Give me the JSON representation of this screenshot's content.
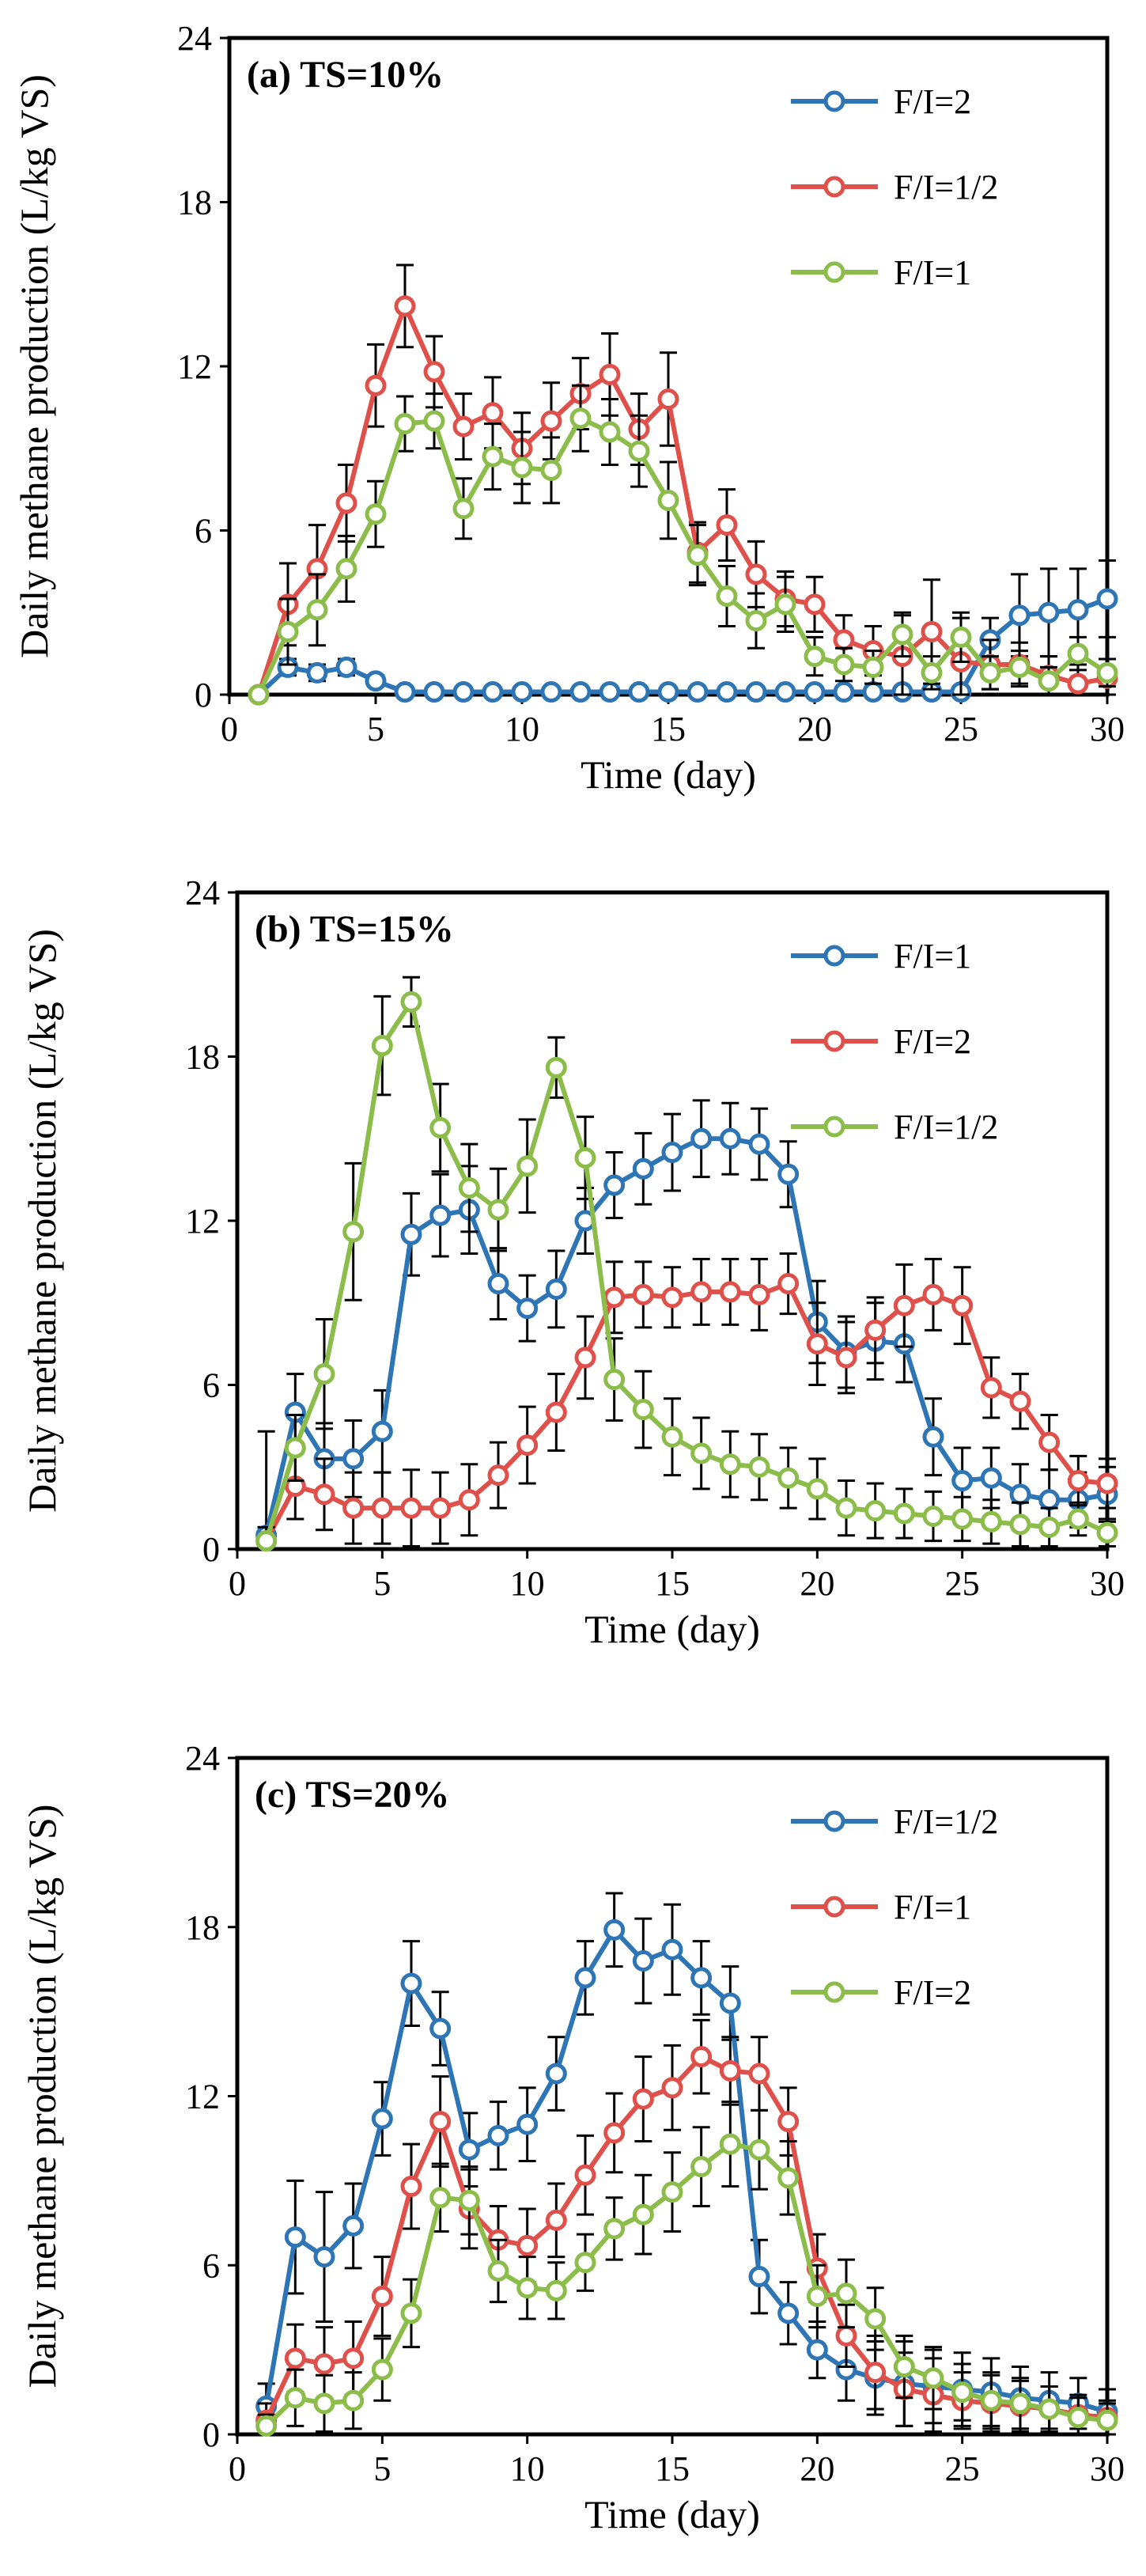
{
  "figure": {
    "colors": {
      "blue": "#2e75b6",
      "red": "#e0504a",
      "green": "#8cbd4a",
      "axis": "#000000",
      "errorbar": "#000000"
    }
  },
  "chart_data": [
    {
      "type": "line",
      "title": "(a) TS=10%",
      "xlabel": "Time (day)",
      "ylabel": "Daily methane production (L/kg VS)",
      "xlim": [
        0,
        30
      ],
      "ylim": [
        0,
        24
      ],
      "xticks": [
        0,
        5,
        10,
        15,
        20,
        25,
        30
      ],
      "yticks": [
        0,
        6,
        12,
        18,
        24
      ],
      "legend_position": "top-right",
      "x": [
        1,
        2,
        3,
        4,
        5,
        6,
        7,
        8,
        9,
        10,
        11,
        12,
        13,
        14,
        15,
        16,
        17,
        18,
        19,
        20,
        21,
        22,
        23,
        24,
        25,
        26,
        27,
        28,
        29,
        30
      ],
      "series": [
        {
          "name": "F/I=2",
          "color": "#2e75b6",
          "values": [
            0,
            1.0,
            0.8,
            1.0,
            0.5,
            0.1,
            0.1,
            0.1,
            0.1,
            0.1,
            0.1,
            0.1,
            0.1,
            0.1,
            0.1,
            0.1,
            0.1,
            0.1,
            0.1,
            0.1,
            0.1,
            0.1,
            0.1,
            0.1,
            0.1,
            2.0,
            2.9,
            3.0,
            3.1,
            3.5
          ],
          "errors": [
            0,
            0.3,
            0.3,
            0.3,
            0.2,
            0,
            0,
            0,
            0,
            0,
            0,
            0,
            0,
            0,
            0,
            0,
            0,
            0,
            0,
            0,
            0,
            0,
            0,
            0,
            0,
            0.8,
            1.5,
            1.6,
            1.5,
            1.4
          ]
        },
        {
          "name": "F/I=1/2",
          "color": "#e0504a",
          "values": [
            0,
            3.3,
            4.6,
            7.0,
            11.3,
            14.2,
            11.8,
            9.8,
            10.3,
            9.0,
            10.0,
            11.0,
            11.7,
            9.7,
            10.8,
            5.2,
            6.2,
            4.4,
            3.5,
            3.3,
            2.0,
            1.6,
            1.4,
            2.3,
            1.2,
            1.1,
            1.1,
            0.7,
            0.4,
            0.6
          ],
          "errors": [
            0,
            1.5,
            1.6,
            1.4,
            1.5,
            1.5,
            1.3,
            1.2,
            1.3,
            1.3,
            1.4,
            1.3,
            1.5,
            1.3,
            1.7,
            1.1,
            1.3,
            1.2,
            1.0,
            1.0,
            0.9,
            0.9,
            1.5,
            1.9,
            1.6,
            0.9,
            0.8,
            0.7,
            0.7,
            0.7
          ]
        },
        {
          "name": "F/I=1",
          "color": "#8cbd4a",
          "values": [
            0,
            2.3,
            3.1,
            4.6,
            6.6,
            9.9,
            10.0,
            6.8,
            8.7,
            8.3,
            8.2,
            10.1,
            9.6,
            8.9,
            7.1,
            5.1,
            3.6,
            2.7,
            3.3,
            1.4,
            1.1,
            1.0,
            2.2,
            0.8,
            2.1,
            0.8,
            1.0,
            0.5,
            1.5,
            0.8
          ],
          "errors": [
            0,
            1.2,
            1.3,
            1.2,
            1.2,
            1.0,
            1.0,
            1.1,
            1.2,
            1.3,
            1.2,
            1.2,
            1.2,
            1.3,
            1.4,
            1.1,
            1.1,
            1.0,
            1.0,
            0.7,
            0.6,
            0.6,
            0.8,
            0.6,
            0.9,
            0.6,
            0.6,
            0.5,
            0.6,
            0.5
          ]
        }
      ]
    },
    {
      "type": "line",
      "title": "(b) TS=15%",
      "xlabel": "Time (day)",
      "ylabel": "Daily methane production (L/kg VS)",
      "xlim": [
        0,
        30
      ],
      "ylim": [
        0,
        24
      ],
      "xticks": [
        0,
        5,
        10,
        15,
        20,
        25,
        30
      ],
      "yticks": [
        0,
        6,
        12,
        18,
        24
      ],
      "legend_position": "top-right",
      "x": [
        1,
        2,
        3,
        4,
        5,
        6,
        7,
        8,
        9,
        10,
        11,
        12,
        13,
        14,
        15,
        16,
        17,
        18,
        19,
        20,
        21,
        22,
        23,
        24,
        25,
        26,
        27,
        28,
        29,
        30
      ],
      "series": [
        {
          "name": "F/I=1",
          "color": "#2e75b6",
          "values": [
            0.5,
            5.0,
            3.3,
            3.3,
            4.3,
            11.5,
            12.2,
            12.4,
            9.7,
            8.8,
            9.5,
            12.0,
            13.3,
            13.9,
            14.5,
            15.0,
            15.0,
            14.8,
            13.7,
            8.3,
            7.2,
            7.6,
            7.5,
            4.1,
            2.5,
            2.6,
            2.0,
            1.8,
            1.8,
            2.0
          ],
          "errors": [
            3.8,
            1.4,
            1.3,
            1.4,
            1.5,
            1.5,
            1.5,
            1.6,
            1.3,
            1.2,
            1.4,
            1.2,
            1.2,
            1.3,
            1.4,
            1.4,
            1.3,
            1.3,
            1.2,
            1.5,
            1.3,
            1.4,
            1.4,
            1.4,
            1.2,
            1.1,
            1.1,
            1.1,
            1.0,
            1.0
          ]
        },
        {
          "name": "F/I=2",
          "color": "#e0504a",
          "values": [
            0.3,
            2.3,
            2.0,
            1.5,
            1.5,
            1.5,
            1.5,
            1.8,
            2.7,
            3.8,
            5.0,
            7.0,
            9.2,
            9.3,
            9.2,
            9.4,
            9.4,
            9.3,
            9.7,
            7.5,
            7.0,
            8.0,
            8.9,
            9.3,
            8.9,
            5.9,
            5.4,
            3.9,
            2.5,
            2.4
          ],
          "errors": [
            0.5,
            1.2,
            1.3,
            1.3,
            1.3,
            1.4,
            1.3,
            1.3,
            1.2,
            1.4,
            1.4,
            1.5,
            1.3,
            1.2,
            1.1,
            1.2,
            1.2,
            1.3,
            1.1,
            1.5,
            1.3,
            1.2,
            1.5,
            1.3,
            1.4,
            1.1,
            1.0,
            1.0,
            0.9,
            0.9
          ]
        },
        {
          "name": "F/I=1/2",
          "color": "#8cbd4a",
          "values": [
            0.3,
            3.7,
            6.4,
            11.6,
            18.4,
            20.0,
            15.4,
            13.2,
            12.4,
            14.0,
            17.6,
            14.3,
            6.2,
            5.1,
            4.1,
            3.5,
            3.1,
            3.0,
            2.6,
            2.2,
            1.5,
            1.4,
            1.3,
            1.2,
            1.1,
            1.0,
            0.9,
            0.8,
            1.1,
            0.6
          ],
          "errors": [
            0.5,
            1.2,
            2.0,
            2.5,
            1.8,
            0.9,
            1.6,
            1.6,
            1.5,
            1.7,
            1.1,
            1.5,
            1.5,
            1.4,
            1.4,
            1.3,
            1.2,
            1.2,
            1.1,
            1.1,
            1.0,
            1.0,
            0.9,
            0.9,
            0.8,
            0.8,
            0.8,
            0.7,
            0.6,
            0.5
          ]
        }
      ]
    },
    {
      "type": "line",
      "title": "(c) TS=20%",
      "xlabel": "Time (day)",
      "ylabel": "Daily methane production (L/kg VS)",
      "xlim": [
        0,
        30
      ],
      "ylim": [
        0,
        24
      ],
      "xticks": [
        0,
        5,
        10,
        15,
        20,
        25,
        30
      ],
      "yticks": [
        0,
        6,
        12,
        18,
        24
      ],
      "legend_position": "top-right",
      "x": [
        1,
        2,
        3,
        4,
        5,
        6,
        7,
        8,
        9,
        10,
        11,
        12,
        13,
        14,
        15,
        16,
        17,
        18,
        19,
        20,
        21,
        22,
        23,
        24,
        25,
        26,
        27,
        28,
        29,
        30
      ],
      "series": [
        {
          "name": "F/I=1/2",
          "color": "#2e75b6",
          "values": [
            1.0,
            7.0,
            6.3,
            7.4,
            11.2,
            16.0,
            14.4,
            10.1,
            10.6,
            11.0,
            12.8,
            16.2,
            17.9,
            16.8,
            17.2,
            16.2,
            15.3,
            5.6,
            4.3,
            3.0,
            2.3,
            2.0,
            1.8,
            1.7,
            1.6,
            1.5,
            1.3,
            1.2,
            1.1,
            0.8
          ],
          "errors": [
            0.8,
            2.0,
            2.3,
            1.5,
            1.3,
            1.5,
            1.3,
            1.3,
            1.2,
            1.3,
            1.3,
            1.3,
            1.3,
            1.5,
            1.6,
            1.3,
            1.3,
            1.3,
            1.1,
            1.0,
            1.1,
            1.3,
            1.5,
            1.3,
            1.3,
            1.2,
            1.1,
            1.0,
            0.9,
            0.8
          ]
        },
        {
          "name": "F/I=1",
          "color": "#e0504a",
          "values": [
            0.5,
            2.7,
            2.5,
            2.7,
            4.9,
            8.8,
            11.1,
            8.0,
            6.9,
            6.7,
            7.6,
            9.2,
            10.7,
            11.9,
            12.3,
            13.4,
            12.9,
            12.8,
            11.1,
            5.9,
            3.5,
            2.2,
            1.6,
            1.4,
            1.2,
            1.1,
            1.0,
            0.9,
            0.7,
            0.6
          ],
          "errors": [
            0.6,
            1.2,
            1.3,
            1.3,
            1.4,
            1.5,
            1.6,
            1.4,
            1.2,
            1.3,
            1.3,
            1.4,
            1.4,
            1.5,
            1.5,
            1.3,
            1.2,
            1.3,
            1.2,
            1.2,
            1.1,
            1.3,
            1.3,
            1.3,
            1.0,
            1.0,
            0.9,
            0.8,
            0.7,
            0.6
          ]
        },
        {
          "name": "F/I=2",
          "color": "#8cbd4a",
          "values": [
            0.3,
            1.3,
            1.1,
            1.2,
            2.3,
            4.3,
            8.4,
            8.3,
            5.8,
            5.2,
            5.1,
            6.1,
            7.3,
            7.8,
            8.6,
            9.5,
            10.3,
            10.1,
            9.1,
            4.9,
            5.0,
            4.1,
            2.4,
            2.0,
            1.5,
            1.2,
            1.1,
            0.9,
            0.6,
            0.5
          ],
          "errors": [
            0.4,
            1.0,
            1.0,
            1.0,
            1.1,
            1.2,
            1.2,
            1.2,
            1.1,
            1.1,
            1.0,
            1.0,
            1.1,
            1.4,
            1.4,
            1.4,
            1.5,
            1.4,
            1.3,
            1.1,
            1.2,
            1.1,
            1.1,
            1.1,
            1.0,
            1.0,
            0.9,
            0.8,
            0.7,
            0.6
          ]
        }
      ]
    }
  ]
}
